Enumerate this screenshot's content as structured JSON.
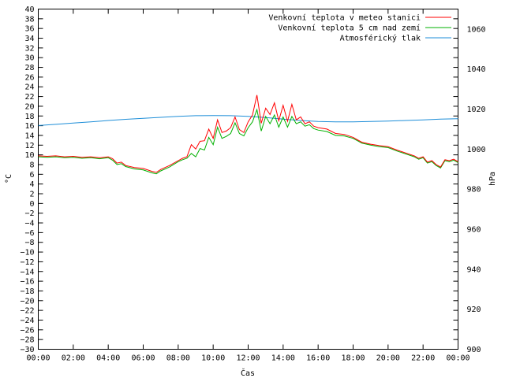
{
  "chart_data": {
    "type": "line",
    "title": "",
    "xlabel": "Čas",
    "ylabel": "°C",
    "y2label": "hPa",
    "xlim": [
      0,
      24
    ],
    "ylim": [
      -30,
      40
    ],
    "y2lim": [
      900,
      1070
    ],
    "x_tick_labels": [
      "00:00",
      "02:00",
      "04:00",
      "06:00",
      "08:00",
      "10:00",
      "12:00",
      "14:00",
      "16:00",
      "18:00",
      "20:00",
      "22:00",
      "00:00"
    ],
    "y_ticks": [
      40,
      38,
      36,
      34,
      32,
      30,
      28,
      26,
      24,
      22,
      20,
      18,
      16,
      14,
      12,
      10,
      8,
      6,
      4,
      2,
      0,
      -2,
      -4,
      -6,
      -8,
      -10,
      -12,
      -14,
      -16,
      -18,
      -20,
      -22,
      -24,
      -26,
      -28,
      -30
    ],
    "y2_ticks": [
      1060,
      1040,
      1020,
      1000,
      980,
      960,
      940,
      920,
      900
    ],
    "grid": false,
    "legend_position": "top-right",
    "series": [
      {
        "name": "Venkovní teplota v meteo stanici",
        "color": "#ff0000",
        "axis": "left",
        "x": [
          0,
          0.5,
          1,
          1.5,
          2,
          2.5,
          3,
          3.5,
          4,
          4.25,
          4.5,
          4.75,
          5,
          5.5,
          6,
          6.5,
          6.75,
          7,
          7.5,
          8,
          8.25,
          8.5,
          8.75,
          9,
          9.25,
          9.5,
          9.75,
          10,
          10.25,
          10.5,
          10.75,
          11,
          11.25,
          11.5,
          11.75,
          12,
          12.25,
          12.5,
          12.75,
          13,
          13.25,
          13.5,
          13.75,
          14,
          14.25,
          14.5,
          14.75,
          15,
          15.25,
          15.5,
          15.75,
          16,
          16.5,
          17,
          17.5,
          18,
          18.5,
          19,
          19.5,
          20,
          20.5,
          21,
          21.5,
          21.75,
          22,
          22.25,
          22.5,
          22.75,
          23,
          23.25,
          23.5,
          23.75,
          24
        ],
        "y": [
          9.8,
          9.7,
          9.8,
          9.6,
          9.7,
          9.5,
          9.6,
          9.4,
          9.6,
          9.2,
          8.3,
          8.5,
          7.8,
          7.4,
          7.2,
          6.6,
          6.4,
          7.0,
          7.8,
          8.8,
          9.3,
          9.6,
          12.1,
          11.2,
          12.8,
          12.9,
          15.3,
          13.4,
          17.2,
          14.6,
          14.9,
          15.6,
          17.8,
          15.2,
          14.6,
          16.8,
          18.2,
          22.3,
          16.5,
          19.6,
          18.3,
          20.7,
          17.0,
          20.2,
          16.9,
          20.4,
          17.2,
          17.8,
          16.4,
          16.8,
          15.9,
          15.6,
          15.3,
          14.4,
          14.2,
          13.6,
          12.6,
          12.2,
          11.9,
          11.7,
          11.0,
          10.4,
          9.8,
          9.3,
          9.6,
          8.5,
          8.8,
          8.0,
          7.5,
          9.0,
          8.8,
          9.1,
          8.6
        ]
      },
      {
        "name": "Venkovní teplota 5 cm nad zemí",
        "color": "#00b000",
        "axis": "left",
        "x": [
          0,
          0.5,
          1,
          1.5,
          2,
          2.5,
          3,
          3.5,
          4,
          4.25,
          4.5,
          4.75,
          5,
          5.5,
          6,
          6.5,
          6.75,
          7,
          7.5,
          8,
          8.25,
          8.5,
          8.75,
          9,
          9.25,
          9.5,
          9.75,
          10,
          10.25,
          10.5,
          10.75,
          11,
          11.25,
          11.5,
          11.75,
          12,
          12.25,
          12.5,
          12.75,
          13,
          13.25,
          13.5,
          13.75,
          14,
          14.25,
          14.5,
          14.75,
          15,
          15.25,
          15.5,
          15.75,
          16,
          16.5,
          17,
          17.5,
          18,
          18.5,
          19,
          19.5,
          20,
          20.5,
          21,
          21.5,
          21.75,
          22,
          22.25,
          22.5,
          22.75,
          23,
          23.25,
          23.5,
          23.75,
          24
        ],
        "y": [
          9.6,
          9.5,
          9.6,
          9.4,
          9.5,
          9.3,
          9.4,
          9.2,
          9.4,
          8.9,
          8.0,
          8.2,
          7.6,
          7.1,
          6.9,
          6.3,
          6.1,
          6.7,
          7.5,
          8.6,
          9.0,
          9.3,
          10.3,
          9.6,
          11.3,
          11.0,
          13.6,
          12.1,
          15.7,
          13.4,
          13.8,
          14.4,
          16.6,
          14.4,
          13.9,
          15.6,
          16.8,
          19.3,
          14.9,
          17.9,
          16.4,
          18.2,
          15.7,
          17.8,
          15.7,
          17.9,
          16.4,
          16.8,
          15.9,
          16.2,
          15.4,
          15.1,
          14.8,
          14.0,
          13.9,
          13.4,
          12.4,
          12.0,
          11.7,
          11.5,
          10.8,
          10.2,
          9.6,
          9.1,
          9.4,
          8.3,
          8.6,
          7.8,
          7.3,
          8.8,
          8.6,
          8.9,
          8.4
        ]
      },
      {
        "name": "Atmosférický tlak",
        "color": "#1e8ed8",
        "axis": "right",
        "x": [
          0,
          1,
          2,
          3,
          4,
          5,
          6,
          7,
          8,
          9,
          10,
          11,
          12,
          13,
          14,
          15,
          16,
          17,
          18,
          19,
          20,
          21,
          22,
          23,
          24
        ],
        "y": [
          1011.8,
          1012.4,
          1013.0,
          1013.6,
          1014.3,
          1014.9,
          1015.4,
          1015.9,
          1016.4,
          1016.7,
          1016.8,
          1016.7,
          1016.4,
          1015.8,
          1015.0,
          1014.3,
          1013.8,
          1013.6,
          1013.6,
          1013.8,
          1014.0,
          1014.3,
          1014.6,
          1015.0,
          1015.2
        ]
      }
    ]
  }
}
